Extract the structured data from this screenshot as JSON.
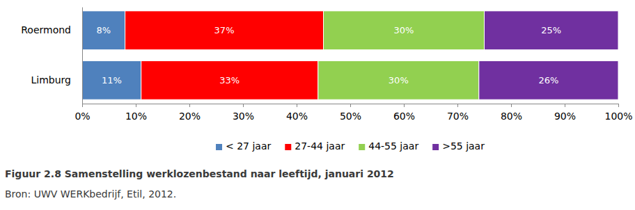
{
  "chart_data": {
    "type": "bar",
    "orientation": "horizontal",
    "stacked": true,
    "data_labels": true,
    "grid": false,
    "legend": "bottom",
    "title": "Figuur 2.8 Samenstelling werklozenbestand naar leeftijd, januari 2012",
    "subtitle": "Bron: UWV WERKbedrijf, Etil, 2012.",
    "categories": [
      "Roermond",
      "Limburg"
    ],
    "series": [
      {
        "name": "< 27 jaar",
        "color": "#4f81bd",
        "values": [
          8,
          11
        ],
        "value_labels": [
          "8%",
          "11%"
        ]
      },
      {
        "name": "27-44 jaar",
        "color": "#ff0000",
        "values": [
          37,
          33
        ],
        "value_labels": [
          "37%",
          "33%"
        ]
      },
      {
        "name": "44-55 jaar",
        "color": "#92d050",
        "values": [
          30,
          30
        ],
        "value_labels": [
          "30%",
          "30%"
        ]
      },
      {
        "name": ">55 jaar",
        "color": "#7030a0",
        "values": [
          25,
          26
        ],
        "value_labels": [
          "25%",
          "26%"
        ]
      }
    ],
    "xlim": [
      0,
      100
    ],
    "xticks": [
      {
        "value": 0,
        "label": "0%"
      },
      {
        "value": 10,
        "label": "10%"
      },
      {
        "value": 20,
        "label": "20%"
      },
      {
        "value": 30,
        "label": "30%"
      },
      {
        "value": 40,
        "label": "40%"
      },
      {
        "value": 50,
        "label": "50%"
      },
      {
        "value": 60,
        "label": "60%"
      },
      {
        "value": 70,
        "label": "70%"
      },
      {
        "value": 80,
        "label": "80%"
      },
      {
        "value": 90,
        "label": "90%"
      },
      {
        "value": 100,
        "label": "100%"
      }
    ]
  }
}
